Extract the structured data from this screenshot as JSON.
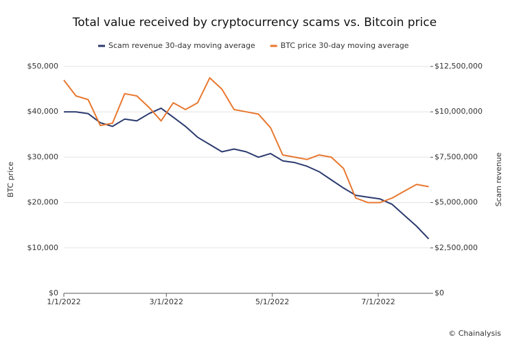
{
  "chart_data": {
    "type": "line",
    "title": "Total value received by cryptocurrency scams vs. Bitcoin price",
    "y_label": "BTC price",
    "y2_label": "Scam revenue",
    "source": "© Chainalysis",
    "x": [
      "1/1/2022",
      "1/8/2022",
      "1/15/2022",
      "1/22/2022",
      "1/29/2022",
      "2/5/2022",
      "2/12/2022",
      "2/19/2022",
      "2/26/2022",
      "3/5/2022",
      "3/12/2022",
      "3/19/2022",
      "3/26/2022",
      "4/2/2022",
      "4/9/2022",
      "4/16/2022",
      "4/23/2022",
      "4/30/2022",
      "5/7/2022",
      "5/14/2022",
      "5/21/2022",
      "5/28/2022",
      "6/4/2022",
      "6/11/2022",
      "6/18/2022",
      "6/25/2022",
      "7/2/2022",
      "7/9/2022",
      "7/16/2022",
      "7/23/2022",
      "7/30/2022"
    ],
    "xlim": [
      "1/1/2022",
      "7/31/2022"
    ],
    "xticks": [
      "1/1/2022",
      "3/1/2022",
      "5/1/2022",
      "7/1/2022"
    ],
    "ylim": [
      0,
      50000
    ],
    "yticks": [
      {
        "value": 0,
        "label": "$0"
      },
      {
        "value": 10000,
        "label": "$10,000"
      },
      {
        "value": 20000,
        "label": "$20,000"
      },
      {
        "value": 30000,
        "label": "$30,000"
      },
      {
        "value": 40000,
        "label": "$40,000"
      },
      {
        "value": 50000,
        "label": "$50,000"
      }
    ],
    "y2lim": [
      0,
      12500000
    ],
    "y2ticks": [
      {
        "value": 0,
        "label": "$0"
      },
      {
        "value": 2500000,
        "label": "$2,500,000"
      },
      {
        "value": 5000000,
        "label": "$5,000,000"
      },
      {
        "value": 7500000,
        "label": "$7,500,000"
      },
      {
        "value": 10000000,
        "label": "$10,000,000"
      },
      {
        "value": 12500000,
        "label": "$12,500,000"
      }
    ],
    "grid": true,
    "series": [
      {
        "name": "Scam revenue 30-day moving average",
        "color": "#2b3a6e",
        "axis": "y2",
        "values": [
          10000000,
          10000000,
          9900000,
          9400000,
          9200000,
          9600000,
          9500000,
          9900000,
          10200000,
          9700000,
          9200000,
          8600000,
          8200000,
          7800000,
          7950000,
          7800000,
          7500000,
          7700000,
          7300000,
          7200000,
          7000000,
          6700000,
          6250000,
          5800000,
          5400000,
          5300000,
          5200000,
          4900000,
          4300000,
          3700000,
          3000000
        ]
      },
      {
        "name": "BTC price 30-day moving average",
        "color": "#e8772e",
        "axis": "y",
        "values": [
          47000,
          43500,
          42700,
          37000,
          37500,
          44000,
          43500,
          41000,
          38000,
          42000,
          40500,
          42000,
          47500,
          45000,
          40500,
          40000,
          39500,
          36500,
          30500,
          30000,
          29500,
          30500,
          30000,
          27500,
          21000,
          20000,
          20000,
          21000,
          22500,
          24000,
          23500
        ]
      }
    ]
  }
}
